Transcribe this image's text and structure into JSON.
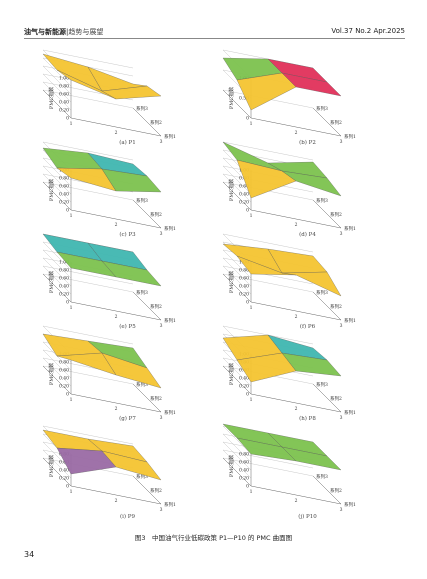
{
  "header": {
    "journal": "油气与新能源",
    "separator": "|",
    "section": "趋势与展望",
    "volume": "Vol.37 No.2 Apr.2025"
  },
  "page_number": "34",
  "figure_caption": "图3　中国油气行业低碳政策 P1—P10 的 PMC 曲面图",
  "colors": {
    "band_0.2-0.4": "#2b3f6b",
    "band_0.4-0.6": "#9a6aa4",
    "band_0.6-0.8": "#f4c430",
    "band_0.8-0.9": "#7cc24e",
    "band_0.9-1.0": "#3fb6b0",
    "band_1.0": "#e0305a"
  },
  "chart_data": [
    {
      "type": "surface",
      "title": "(a) P1",
      "zlabel": "PMC指数",
      "z_ticks": [
        "1.00",
        "0.80",
        "0.60",
        "0.40",
        "0.20",
        "0"
      ],
      "x_ticks": [
        "1",
        "2",
        "3"
      ],
      "y_labels": [
        "系列1",
        "系列2",
        "系列3"
      ],
      "z": [
        [
          0.95,
          0.7,
          1.0
        ],
        [
          0.85,
          0.55,
          0.9
        ],
        [
          0.9,
          0.8,
          0.6
        ]
      ]
    },
    {
      "type": "surface",
      "title": "(b) P2",
      "zlabel": "PMC指数",
      "z_ticks": [
        "1.00",
        "0.50",
        "0"
      ],
      "x_ticks": [
        "1",
        "2",
        "3"
      ],
      "y_labels": [
        "系列1",
        "系列2",
        "系列3"
      ],
      "z": [
        [
          0.2,
          1.0,
          1.0
        ],
        [
          0.6,
          1.0,
          1.0
        ],
        [
          0.8,
          1.0,
          1.0
        ]
      ]
    },
    {
      "type": "surface",
      "title": "(c) P3",
      "zlabel": "PMC指数",
      "z_ticks": [
        "1.00",
        "0.80",
        "0.60",
        "0.40",
        "0.20",
        "0"
      ],
      "x_ticks": [
        "1",
        "2",
        "3"
      ],
      "y_labels": [
        "系列1",
        "系列2",
        "系列3"
      ],
      "z": [
        [
          0.8,
          0.7,
          0.9
        ],
        [
          0.7,
          0.9,
          0.95
        ],
        [
          0.85,
          0.95,
          0.9
        ]
      ]
    },
    {
      "type": "surface",
      "title": "(d) P4",
      "zlabel": "PMC指数",
      "z_ticks": [
        "1.00",
        "0.80",
        "0.60",
        "0.40",
        "0.20",
        "0"
      ],
      "x_ticks": [
        "1",
        "2",
        "3"
      ],
      "y_labels": [
        "系列1",
        "系列2",
        "系列3"
      ],
      "z": [
        [
          0.3,
          0.95,
          0.8
        ],
        [
          0.9,
          0.85,
          0.9
        ],
        [
          1.0,
          0.7,
          0.95
        ]
      ]
    },
    {
      "type": "surface",
      "title": "(e) P5",
      "zlabel": "PMC指数",
      "z_ticks": [
        "1.00",
        "0.80",
        "0.60",
        "0.40",
        "0.20",
        "0"
      ],
      "x_ticks": [
        "1",
        "2",
        "3"
      ],
      "y_labels": [
        "系列1",
        "系列2",
        "系列3"
      ],
      "z": [
        [
          0.85,
          0.85,
          0.85
        ],
        [
          0.9,
          0.9,
          0.9
        ],
        [
          1.0,
          1.0,
          1.0
        ]
      ]
    },
    {
      "type": "surface",
      "title": "(f) P6",
      "zlabel": "PMC指数",
      "z_ticks": [
        "1.00",
        "0.80",
        "0.60",
        "0.40",
        "0.20",
        "0"
      ],
      "x_ticks": [
        "1",
        "2",
        "3"
      ],
      "y_labels": [
        "系列1",
        "系列2",
        "系列3"
      ],
      "z": [
        [
          0.7,
          0.9,
          0.6
        ],
        [
          0.8,
          0.6,
          0.85
        ],
        [
          0.75,
          0.85,
          0.9
        ]
      ]
    },
    {
      "type": "surface",
      "title": "(g) P7",
      "zlabel": "PMC指数",
      "z_ticks": [
        "1.00",
        "0.80",
        "0.60",
        "0.40",
        "0.20",
        "0"
      ],
      "x_ticks": [
        "1",
        "2",
        "3"
      ],
      "y_labels": [
        "系列1",
        "系列2",
        "系列3"
      ],
      "z": [
        [
          0.85,
          0.7,
          0.6
        ],
        [
          0.6,
          0.9,
          0.75
        ],
        [
          0.8,
          0.85,
          0.9
        ]
      ]
    },
    {
      "type": "surface",
      "title": "(h) P8",
      "zlabel": "PMC指数",
      "z_ticks": [
        "1.00",
        "0.80",
        "0.60",
        "0.40",
        "0.20",
        "0"
      ],
      "x_ticks": [
        "1",
        "2",
        "3"
      ],
      "y_labels": [
        "系列1",
        "系列2",
        "系列3"
      ],
      "z": [
        [
          0.3,
          0.8,
          0.9
        ],
        [
          0.5,
          0.9,
          0.95
        ],
        [
          0.7,
          1.0,
          0.9
        ]
      ]
    },
    {
      "type": "surface",
      "title": "(i) P9",
      "zlabel": "PMC指数",
      "z_ticks": [
        "0.80",
        "0.60",
        "0.40",
        "0.20",
        "0"
      ],
      "x_ticks": [
        "1",
        "2",
        "3"
      ],
      "y_labels": [
        "系列1",
        "系列2",
        "系列3"
      ],
      "z": [
        [
          0.3,
          0.7,
          0.6
        ],
        [
          0.6,
          0.75,
          0.7
        ],
        [
          0.7,
          0.7,
          0.75
        ]
      ]
    },
    {
      "type": "surface",
      "title": "(j) P10",
      "zlabel": "PMC指数",
      "z_ticks": [
        "0.80",
        "0.60",
        "0.40",
        "0.20",
        "0"
      ],
      "x_ticks": [
        "1",
        "2",
        "3"
      ],
      "y_labels": [
        "系列1",
        "系列2",
        "系列3"
      ],
      "z": [
        [
          0.8,
          0.85,
          0.85
        ],
        [
          0.85,
          0.85,
          0.85
        ],
        [
          0.85,
          0.85,
          0.85
        ]
      ]
    }
  ]
}
